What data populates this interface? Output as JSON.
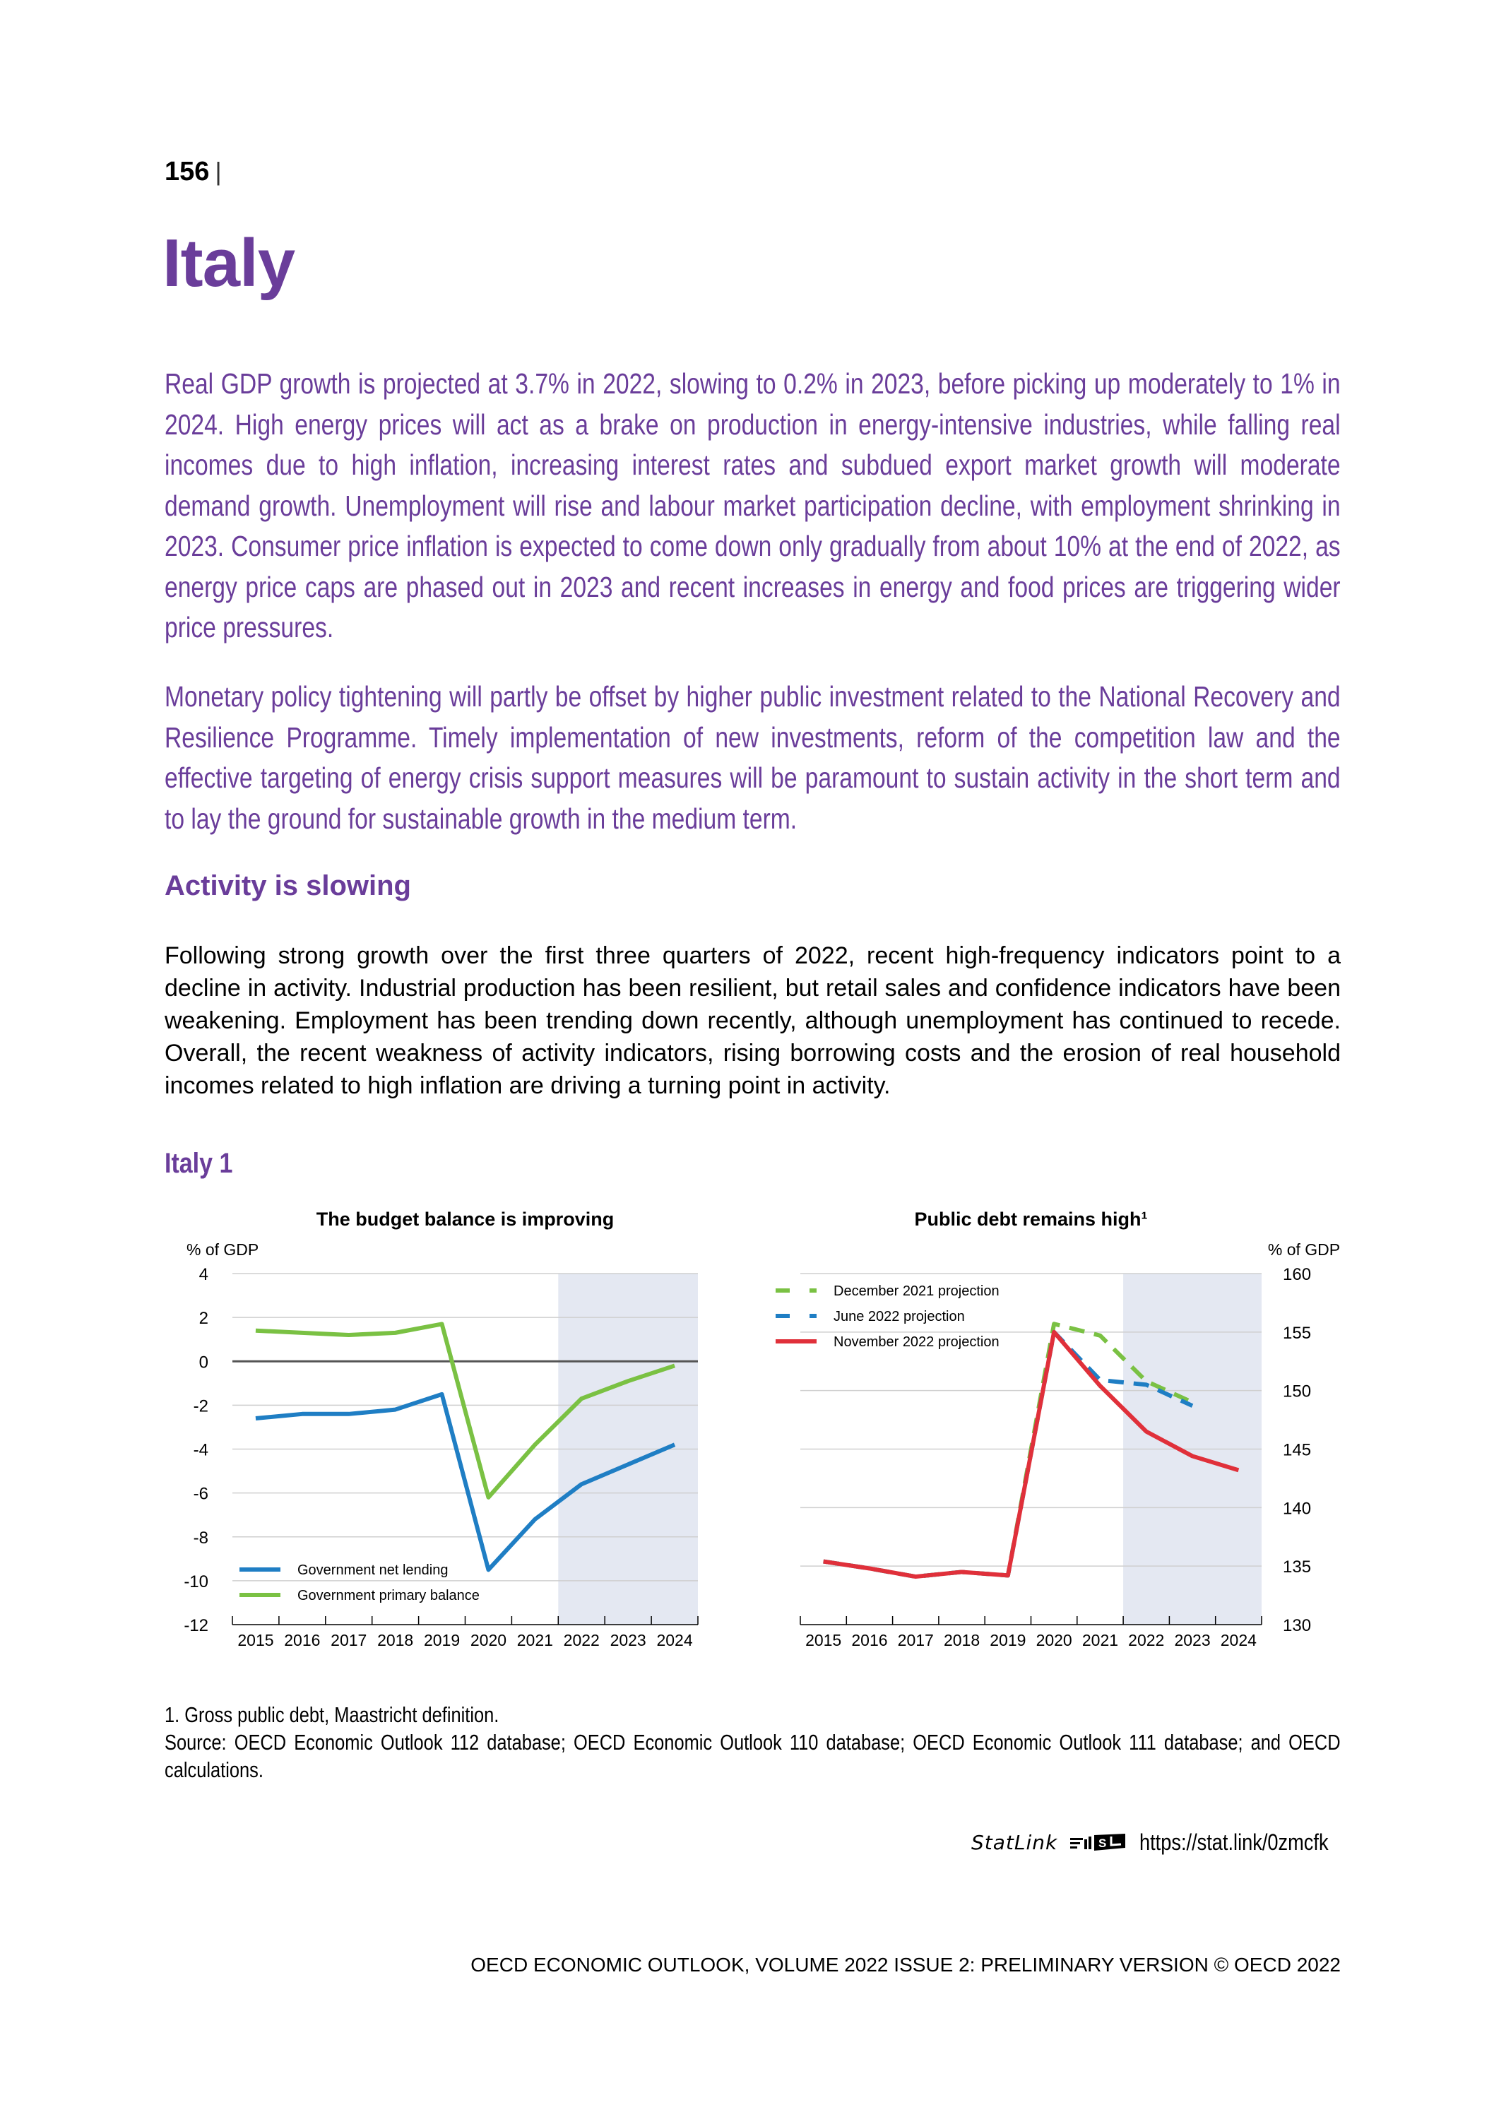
{
  "page_number": "156",
  "title": "Italy",
  "intro_paragraphs": [
    "Real GDP growth is projected at 3.7% in 2022, slowing to 0.2% in 2023, before picking up moderately to 1% in 2024. High energy prices will act as a brake on production in energy-intensive industries, while falling real incomes due to high inflation, increasing interest rates and subdued export market growth will moderate demand growth. Unemployment will rise and labour market participation decline, with employment shrinking in 2023. Consumer price inflation is expected to come down only gradually from about 10% at the end of 2022, as energy price caps are phased out in 2023 and recent increases in energy and food prices are triggering wider price pressures.",
    "Monetary policy tightening will partly be offset by higher public investment related to the National Recovery and Resilience Programme. Timely implementation of new investments, reform of the competition law and the effective targeting of energy crisis support measures will be paramount to sustain activity in the short term and to lay the ground for sustainable growth in the medium term."
  ],
  "section_heading": "Activity is slowing",
  "body_paragraph": "Following strong growth over the first three quarters of 2022, recent high-frequency indicators point to a decline in activity. Industrial production has been resilient, but retail sales and confidence indicators have been weakening. Employment has been trending down recently, although unemployment has continued to recede. Overall, the recent weakness of activity indicators, rising borrowing costs and the erosion of real household incomes related to high inflation are driving a turning point in activity.",
  "figure_title": "Italy 1",
  "colors": {
    "accent": "#6a3d9a",
    "blue": "#1f7ec4",
    "green": "#7ac143",
    "red": "#e0303a",
    "projection_shade": "#e4e8f2"
  },
  "chart_data": [
    {
      "type": "line",
      "title": "The budget balance is improving",
      "ylabel": "% of GDP",
      "y_axis_side": "left",
      "ylim": [
        -12,
        4
      ],
      "yticks": [
        4,
        2,
        0,
        -2,
        -4,
        -6,
        -8,
        -10,
        -12
      ],
      "categories": [
        "2015",
        "2016",
        "2017",
        "2018",
        "2019",
        "2020",
        "2021",
        "2022",
        "2023",
        "2024"
      ],
      "projection_shaded_from": "2022",
      "grid": true,
      "legend": "bottom-left",
      "series": [
        {
          "name": "Government net lending",
          "color": "#1f7ec4",
          "style": "solid",
          "values": [
            -2.6,
            -2.4,
            -2.4,
            -2.2,
            -1.5,
            -9.5,
            -7.2,
            -5.6,
            -4.7,
            -3.8
          ]
        },
        {
          "name": "Government primary balance",
          "color": "#7ac143",
          "style": "solid",
          "values": [
            1.4,
            1.3,
            1.2,
            1.3,
            1.7,
            -6.2,
            -3.8,
            -1.7,
            -0.9,
            -0.2
          ]
        }
      ]
    },
    {
      "type": "line",
      "title": "Public debt remains high¹",
      "ylabel": "% of GDP",
      "y_axis_side": "right",
      "ylim": [
        130,
        160
      ],
      "yticks": [
        160,
        155,
        150,
        145,
        140,
        135,
        130
      ],
      "categories": [
        "2015",
        "2016",
        "2017",
        "2018",
        "2019",
        "2020",
        "2021",
        "2022",
        "2023",
        "2024"
      ],
      "projection_shaded_from": "2022",
      "grid": true,
      "legend": "top-left",
      "series": [
        {
          "name": "December 2021 projection",
          "color": "#7ac143",
          "style": "dashed",
          "values": [
            135.4,
            134.8,
            134.1,
            134.5,
            134.2,
            155.7,
            154.7,
            150.8,
            149.0,
            null
          ]
        },
        {
          "name": "June 2022 projection",
          "color": "#1f7ec4",
          "style": "dashed",
          "values": [
            135.4,
            134.8,
            134.1,
            134.5,
            134.2,
            155.0,
            150.9,
            150.5,
            148.7,
            null
          ]
        },
        {
          "name": "November 2022 projection",
          "color": "#e0303a",
          "style": "solid",
          "values": [
            135.4,
            134.8,
            134.1,
            134.5,
            134.2,
            155.0,
            150.4,
            146.5,
            144.4,
            143.2
          ]
        }
      ]
    }
  ],
  "footnote": "1. Gross public debt, Maastricht definition.",
  "source": "Source: OECD Economic Outlook 112 database; OECD Economic Outlook 110 database; OECD Economic Outlook 111 database; and OECD calculations.",
  "statlink": {
    "label": "StatLink",
    "url": "https://stat.link/0zmcfk"
  },
  "footer": "OECD ECONOMIC OUTLOOK, VOLUME 2022 ISSUE 2: PRELIMINARY VERSION © OECD 2022"
}
